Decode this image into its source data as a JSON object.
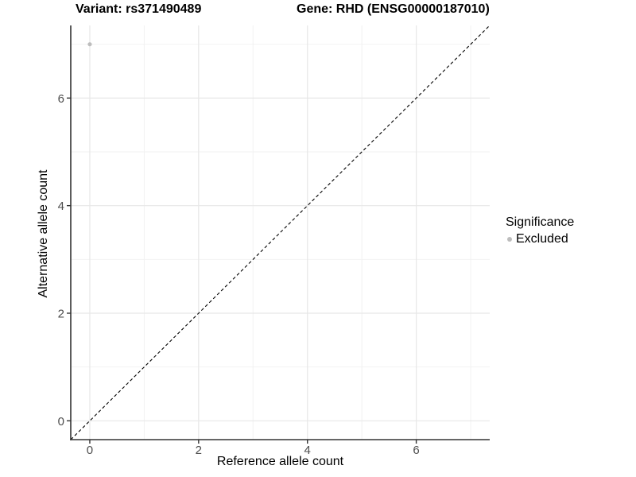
{
  "title": {
    "left": "Variant: rs371490489",
    "right": "Gene: RHD (ENSG00000187010)"
  },
  "legend": {
    "title": "Significance",
    "items": [
      {
        "label": "Excluded",
        "color": "#bdbdbd",
        "marker": "circle"
      }
    ]
  },
  "colors": {
    "point": "#bdbdbd",
    "grid_major": "#e7e7e7",
    "grid_minor": "#f2f2f2",
    "axis_line": "#333333",
    "tick_label": "#4d4d4d",
    "reference_line": "#000000",
    "background": "#ffffff"
  },
  "chart_data": {
    "type": "scatter",
    "title": "Variant: rs371490489    Gene: RHD (ENSG00000187010)",
    "xlabel": "Reference allele count",
    "ylabel": "Alternative allele count",
    "xlim": [
      -0.35,
      7.35
    ],
    "ylim": [
      -0.35,
      7.35
    ],
    "xticks": [
      0,
      2,
      4,
      6
    ],
    "yticks": [
      0,
      2,
      4,
      6
    ],
    "x_minor_gridlines": [
      1,
      3,
      5,
      7
    ],
    "y_minor_gridlines": [
      1,
      3,
      5,
      7
    ],
    "grid": true,
    "legend_position": "right",
    "series": [
      {
        "name": "Excluded",
        "color": "#bdbdbd",
        "points": [
          {
            "x": 0,
            "y": 7
          }
        ]
      }
    ],
    "reference_line": {
      "style": "dashed",
      "slope": 1,
      "intercept": 0,
      "from": [
        -0.35,
        -0.35
      ],
      "to": [
        7.35,
        7.35
      ]
    }
  }
}
